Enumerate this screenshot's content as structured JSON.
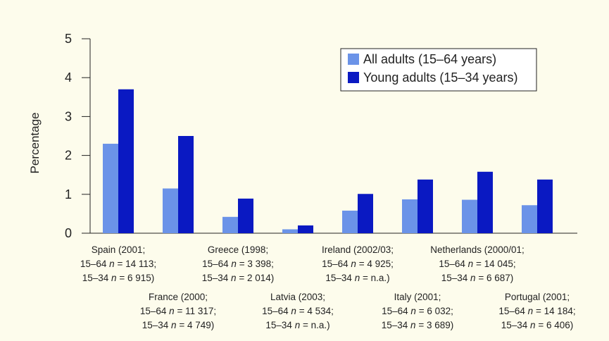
{
  "chart_data": {
    "type": "bar",
    "ylabel": "Percentage",
    "ylim": [
      0,
      5
    ],
    "yticks": [
      "0",
      "1",
      "2",
      "3",
      "4",
      "5"
    ],
    "grid": false,
    "legend_position": "top-right",
    "colors": {
      "all_adults": "#6b93e8",
      "young_adults": "#0a19c2",
      "background": "#fdfcec"
    },
    "categories": [
      {
        "lines": [
          [
            "Spain (2001;"
          ],
          [
            "15–64 ",
            "n",
            " = 14 113;"
          ],
          [
            "15–34 ",
            "n",
            " = 6 915)"
          ]
        ],
        "row": "upper"
      },
      {
        "lines": [
          [
            "France (2000;"
          ],
          [
            "15–64 ",
            "n",
            " = 11 317;"
          ],
          [
            "15–34 ",
            "n",
            " = 4 749)"
          ]
        ],
        "row": "lower"
      },
      {
        "lines": [
          [
            "Greece (1998;"
          ],
          [
            "15–64 ",
            "n",
            " = 3 398;"
          ],
          [
            "15–34 ",
            "n",
            " = 2 014)"
          ]
        ],
        "row": "upper"
      },
      {
        "lines": [
          [
            "Latvia (2003;"
          ],
          [
            "15–64 ",
            "n",
            " = 4 534;"
          ],
          [
            "15–34 ",
            "n",
            " = n.a.)"
          ]
        ],
        "row": "lower"
      },
      {
        "lines": [
          [
            "Ireland (2002/03;"
          ],
          [
            "15–64 ",
            "n",
            " = 4 925;"
          ],
          [
            "15–34 ",
            "n",
            " = n.a.)"
          ]
        ],
        "row": "upper"
      },
      {
        "lines": [
          [
            "Italy (2001;"
          ],
          [
            "15–64 ",
            "n",
            " = 6 032;"
          ],
          [
            "15–34 ",
            "n",
            " = 3 689)"
          ]
        ],
        "row": "lower"
      },
      {
        "lines": [
          [
            "Netherlands (2000/01;"
          ],
          [
            "15–64 ",
            "n",
            " = 14 045;"
          ],
          [
            "15–34 ",
            "n",
            " = 6 687)"
          ]
        ],
        "row": "upper"
      },
      {
        "lines": [
          [
            "Portugal (2001;"
          ],
          [
            "15–64 ",
            "n",
            " = 14 184;"
          ],
          [
            "15–34 ",
            "n",
            " = 6 406)"
          ]
        ],
        "row": "lower"
      }
    ],
    "series": [
      {
        "name": "All adults (15–64 years)",
        "color": "#6b93e8",
        "values": [
          2.3,
          1.15,
          0.42,
          0.1,
          0.58,
          0.87,
          0.86,
          0.72
        ]
      },
      {
        "name": "Young adults (15–34 years)",
        "color": "#0a19c2",
        "values": [
          3.7,
          2.5,
          0.89,
          0.2,
          1.01,
          1.38,
          1.58,
          1.38
        ]
      }
    ]
  }
}
